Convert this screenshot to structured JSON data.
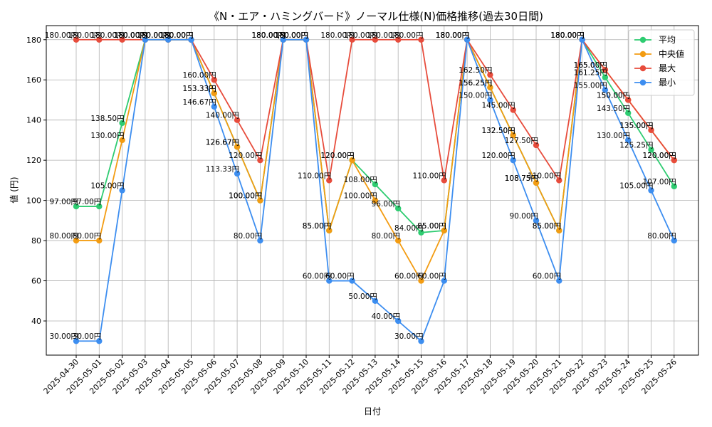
{
  "chart_data": {
    "type": "line",
    "title": "《N・エア・ハミングバード》ノーマル仕様(N)価格推移(過去30日間)",
    "xlabel": "日付",
    "ylabel": "値 (円)",
    "unit_suffix": "円",
    "ylim": [
      23,
      187
    ],
    "yticks": [
      40,
      60,
      80,
      100,
      120,
      140,
      160,
      180
    ],
    "grid": true,
    "legend_position": "top-right",
    "categories": [
      "2025-04-30",
      "2025-05-01",
      "2025-05-02",
      "2025-05-03",
      "2025-05-04",
      "2025-05-05",
      "2025-05-06",
      "2025-05-07",
      "2025-05-08",
      "2025-05-09",
      "2025-05-10",
      "2025-05-11",
      "2025-05-12",
      "2025-05-13",
      "2025-05-14",
      "2025-05-15",
      "2025-05-16",
      "2025-05-17",
      "2025-05-18",
      "2025-05-19",
      "2025-05-20",
      "2025-05-21",
      "2025-05-22",
      "2025-05-23",
      "2025-05-24",
      "2025-05-25",
      "2025-05-26"
    ],
    "series": [
      {
        "name": "平均",
        "color": "#2ecc71",
        "values": [
          97,
          97,
          138.5,
          180,
          180,
          180,
          153.33,
          126.67,
          100,
          180,
          180,
          85,
          120,
          108,
          96,
          84,
          85,
          180,
          156.25,
          132.5,
          108.75,
          85,
          180,
          161.25,
          143.5,
          125.25,
          107
        ]
      },
      {
        "name": "中央値",
        "color": "#f39c12",
        "values": [
          80,
          80,
          130,
          180,
          180,
          180,
          153.33,
          126.67,
          100,
          180,
          180,
          85,
          120,
          100,
          80,
          60,
          85,
          180,
          156.25,
          132.5,
          108.75,
          85,
          180,
          165,
          150,
          135,
          120
        ]
      },
      {
        "name": "最大",
        "color": "#e74c3c",
        "values": [
          180,
          180,
          180,
          180,
          180,
          180,
          160,
          140,
          120,
          180,
          180,
          110,
          180,
          180,
          180,
          180,
          110,
          180,
          162.5,
          145,
          127.5,
          110,
          180,
          165,
          150,
          135,
          120
        ]
      },
      {
        "name": "最小",
        "color": "#3d8ef0",
        "values": [
          30,
          30,
          105,
          180,
          180,
          180,
          146.67,
          113.33,
          80,
          180,
          180,
          60,
          60,
          50,
          40,
          30,
          60,
          180,
          150,
          120,
          90,
          60,
          180,
          155,
          130,
          105,
          80
        ]
      }
    ]
  }
}
